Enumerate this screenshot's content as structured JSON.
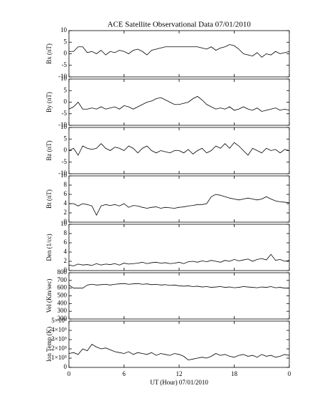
{
  "chart_data": [
    {
      "type": "line",
      "title": "ACE Satellite Observational Data   07/01/2010",
      "ylabel": "Bx (nT)",
      "ylim": [
        -10,
        10
      ],
      "yticks": [
        -10,
        -5,
        0,
        5,
        10
      ],
      "x": [
        0,
        0.5,
        1,
        1.5,
        2,
        2.5,
        3,
        3.5,
        4,
        4.5,
        5,
        5.5,
        6,
        6.5,
        7,
        7.5,
        8,
        8.5,
        9,
        9.5,
        10,
        10.5,
        11,
        11.5,
        12,
        12.5,
        13,
        13.5,
        14,
        14.5,
        15,
        15.5,
        16,
        16.5,
        17,
        17.5,
        18,
        18.5,
        19,
        19.5,
        20,
        20.5,
        21,
        21.5,
        22,
        22.5,
        23,
        23.5,
        24
      ],
      "series": [
        {
          "color": "#000000",
          "values": [
            1,
            1,
            3,
            3,
            0.5,
            1,
            0,
            1.5,
            -0.5,
            1,
            0.5,
            1.5,
            1,
            0,
            1.5,
            2,
            1,
            -0.5,
            1.5,
            2,
            2.5,
            3,
            3,
            3,
            3,
            3,
            3,
            3,
            3,
            2.5,
            2,
            3,
            1.5,
            2.5,
            3,
            4,
            3.5,
            2,
            0,
            -0.5,
            -1,
            0.5,
            -1.5,
            0,
            -0.5,
            1,
            0,
            0.5,
            1
          ]
        }
      ]
    },
    {
      "type": "line",
      "ylabel": "By (nT)",
      "ylim": [
        -10,
        10
      ],
      "yticks": [
        -10,
        -5,
        0,
        5,
        10
      ],
      "x": [
        0,
        0.5,
        1,
        1.5,
        2,
        2.5,
        3,
        3.5,
        4,
        4.5,
        5,
        5.5,
        6,
        6.5,
        7,
        7.5,
        8,
        8.5,
        9,
        9.5,
        10,
        10.5,
        11,
        11.5,
        12,
        12.5,
        13,
        13.5,
        14,
        14.5,
        15,
        15.5,
        16,
        16.5,
        17,
        17.5,
        18,
        18.5,
        19,
        19.5,
        20,
        20.5,
        21,
        21.5,
        22,
        22.5,
        23,
        23.5,
        24
      ],
      "series": [
        {
          "color": "#000000",
          "values": [
            -3,
            -2,
            0,
            -3,
            -3,
            -2.5,
            -3,
            -2,
            -3,
            -2.5,
            -2,
            -3,
            -1.5,
            -2,
            -3,
            -2,
            -1,
            0,
            0.5,
            1.5,
            2,
            1,
            0,
            -1,
            -1,
            -0.5,
            0,
            1.5,
            2.5,
            1,
            -1,
            -2,
            -3,
            -2.5,
            -3,
            -2,
            -3.5,
            -3,
            -2,
            -3,
            -3.5,
            -2.5,
            -4,
            -3.5,
            -3,
            -2.5,
            -3.5,
            -3,
            -3.5
          ]
        }
      ]
    },
    {
      "type": "line",
      "ylabel": "Bz (nT)",
      "ylim": [
        -10,
        10
      ],
      "yticks": [
        -10,
        -5,
        0,
        5,
        10
      ],
      "x": [
        0,
        0.5,
        1,
        1.5,
        2,
        2.5,
        3,
        3.5,
        4,
        4.5,
        5,
        5.5,
        6,
        6.5,
        7,
        7.5,
        8,
        8.5,
        9,
        9.5,
        10,
        10.5,
        11,
        11.5,
        12,
        12.5,
        13,
        13.5,
        14,
        14.5,
        15,
        15.5,
        16,
        16.5,
        17,
        17.5,
        18,
        18.5,
        19,
        19.5,
        20,
        20.5,
        21,
        21.5,
        22,
        22.5,
        23,
        23.5,
        24
      ],
      "series": [
        {
          "color": "#000000",
          "values": [
            0,
            1,
            -2,
            2,
            1,
            0.5,
            1,
            3,
            1,
            0,
            1.5,
            1,
            0,
            2,
            1,
            -1,
            1,
            2,
            0,
            -1,
            0,
            -0.5,
            -1,
            0,
            0,
            -1,
            0.5,
            -1.5,
            0,
            1,
            -1,
            0,
            2,
            1,
            3,
            1,
            3.5,
            2,
            0,
            -2,
            1,
            0,
            -1,
            1,
            0,
            0.5,
            -1,
            0.5,
            0
          ]
        }
      ]
    },
    {
      "type": "line",
      "ylabel": "Bt (nT)",
      "ylim": [
        0,
        10
      ],
      "yticks": [
        0,
        2,
        4,
        6,
        8,
        10
      ],
      "x": [
        0,
        0.5,
        1,
        1.5,
        2,
        2.5,
        3,
        3.5,
        4,
        4.5,
        5,
        5.5,
        6,
        6.5,
        7,
        7.5,
        8,
        8.5,
        9,
        9.5,
        10,
        10.5,
        11,
        11.5,
        12,
        12.5,
        13,
        13.5,
        14,
        14.5,
        15,
        15.5,
        16,
        16.5,
        17,
        17.5,
        18,
        18.5,
        19,
        19.5,
        20,
        20.5,
        21,
        21.5,
        22,
        22.5,
        23,
        23.5,
        24
      ],
      "series": [
        {
          "color": "#000000",
          "values": [
            4,
            4,
            3.5,
            4,
            3.8,
            3.5,
            1.5,
            3.5,
            3.8,
            3.6,
            3.8,
            3.5,
            4,
            3.2,
            3.6,
            3.5,
            3.2,
            3,
            3.2,
            3.3,
            3,
            3.2,
            3.1,
            3,
            3.2,
            3.3,
            3.5,
            3.6,
            3.8,
            3.8,
            4,
            5.5,
            6,
            5.8,
            5.5,
            5.2,
            5,
            4.8,
            5,
            5.2,
            5,
            4.8,
            5,
            5.5,
            5,
            4.6,
            4.4,
            4.3,
            4.2
          ]
        }
      ]
    },
    {
      "type": "line",
      "ylabel": "Den (1/cc)",
      "ylim": [
        0,
        10
      ],
      "yticks": [
        0,
        2,
        4,
        6,
        8,
        10
      ],
      "x": [
        0,
        0.5,
        1,
        1.5,
        2,
        2.5,
        3,
        3.5,
        4,
        4.5,
        5,
        5.5,
        6,
        6.5,
        7,
        7.5,
        8,
        8.5,
        9,
        9.5,
        10,
        10.5,
        11,
        11.5,
        12,
        12.5,
        13,
        13.5,
        14,
        14.5,
        15,
        15.5,
        16,
        16.5,
        17,
        17.5,
        18,
        18.5,
        19,
        19.5,
        20,
        20.5,
        21,
        21.5,
        22,
        22.5,
        23,
        23.5,
        24
      ],
      "series": [
        {
          "color": "#000000",
          "values": [
            1.2,
            1,
            1.4,
            1.2,
            1.3,
            1.1,
            1.5,
            1.2,
            1.4,
            1.3,
            1.5,
            1.2,
            1.6,
            1.4,
            1.5,
            1.6,
            1.8,
            1.5,
            1.7,
            1.8,
            1.6,
            1.7,
            1.5,
            1.6,
            1.8,
            1.5,
            1.9,
            2,
            1.8,
            2.1,
            1.9,
            2.2,
            2,
            1.8,
            2.2,
            2,
            2.4,
            2.1,
            2.3,
            2.5,
            2,
            2.4,
            2.6,
            2.3,
            3.5,
            2.2,
            2.4,
            2,
            2.2
          ]
        }
      ]
    },
    {
      "type": "line",
      "ylabel": "Vel (Km/sec)",
      "ylim": [
        200,
        800
      ],
      "yticks": [
        200,
        300,
        400,
        500,
        600,
        700,
        800
      ],
      "x": [
        0,
        0.5,
        1,
        1.5,
        2,
        2.5,
        3,
        3.5,
        4,
        4.5,
        5,
        5.5,
        6,
        6.5,
        7,
        7.5,
        8,
        8.5,
        9,
        9.5,
        10,
        10.5,
        11,
        11.5,
        12,
        12.5,
        13,
        13.5,
        14,
        14.5,
        15,
        15.5,
        16,
        16.5,
        17,
        17.5,
        18,
        18.5,
        19,
        19.5,
        20,
        20.5,
        21,
        21.5,
        22,
        22.5,
        23,
        23.5,
        24
      ],
      "series": [
        {
          "color": "#000000",
          "values": [
            640,
            600,
            600,
            600,
            640,
            650,
            640,
            645,
            650,
            640,
            650,
            655,
            660,
            650,
            655,
            660,
            650,
            655,
            645,
            650,
            640,
            645,
            635,
            640,
            630,
            625,
            630,
            620,
            625,
            615,
            620,
            610,
            615,
            620,
            610,
            615,
            605,
            610,
            620,
            615,
            610,
            605,
            615,
            610,
            620,
            605,
            610,
            600,
            600
          ]
        }
      ]
    },
    {
      "type": "line",
      "ylabel": "Ion Temp (K)",
      "xlabel": "UT (Hour)   07/01/2010",
      "ylim": [
        0,
        500000
      ],
      "yticks": [
        0,
        {
          "value": 100000,
          "label": "1×10⁵"
        },
        {
          "value": 200000,
          "label": "2×10⁵"
        },
        {
          "value": 300000,
          "label": "3×10⁵"
        },
        {
          "value": 400000,
          "label": "4×10⁵"
        },
        {
          "value": 500000,
          "label": "5×10⁵"
        }
      ],
      "xlim": [
        0,
        24
      ],
      "xticks": [
        0,
        6,
        12,
        18,
        {
          "value": 24,
          "label": "0"
        }
      ],
      "x": [
        0,
        0.5,
        1,
        1.5,
        2,
        2.5,
        3,
        3.5,
        4,
        4.5,
        5,
        5.5,
        6,
        6.5,
        7,
        7.5,
        8,
        8.5,
        9,
        9.5,
        10,
        10.5,
        11,
        11.5,
        12,
        12.5,
        13,
        13.5,
        14,
        14.5,
        15,
        15.5,
        16,
        16.5,
        17,
        17.5,
        18,
        18.5,
        19,
        19.5,
        20,
        20.5,
        21,
        21.5,
        22,
        22.5,
        23,
        23.5,
        24
      ],
      "series": [
        {
          "color": "#000000",
          "values": [
            150000,
            160000,
            140000,
            200000,
            180000,
            250000,
            220000,
            200000,
            210000,
            190000,
            170000,
            160000,
            150000,
            170000,
            140000,
            160000,
            150000,
            140000,
            160000,
            130000,
            150000,
            140000,
            130000,
            150000,
            140000,
            120000,
            80000,
            90000,
            100000,
            110000,
            100000,
            120000,
            150000,
            130000,
            140000,
            120000,
            110000,
            130000,
            140000,
            120000,
            130000,
            110000,
            140000,
            120000,
            130000,
            110000,
            120000,
            140000,
            130000
          ]
        }
      ]
    }
  ]
}
